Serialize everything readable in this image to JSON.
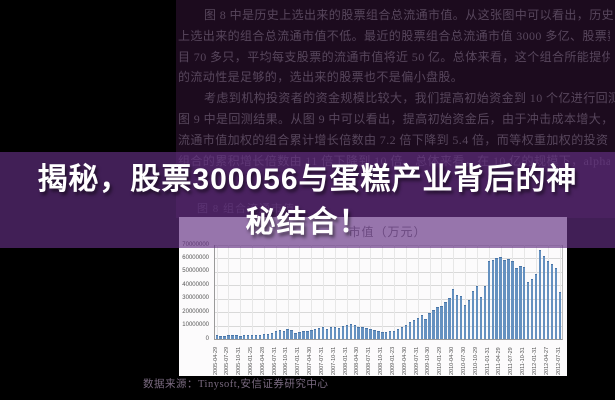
{
  "document": {
    "lines": [
      "图 8 中是历史上选出来的股票组合总流通市值。从这张图中可以看出，历史",
      "上选出来的组合总流通市值不低。最近的股票组合总流通市值 3000 多亿、股票数",
      "目 70 多只，平均每支股票的流通市值将近 50 亿。总体来看，这个组合所能提供",
      "的流动性是足够的，选出来的股票也不是偏小盘股。",
      "考虑到机构投资者的资金规模比较大，我们提高初始资金到 10 个亿进行回测，",
      "图 9 中是回测结果。从图 9 中可以看出，提高初始资金后，由于冲击成本增大，",
      "流通市值加权的组合累计增长倍数由 7.2 倍下降到 5.4 倍，而等权重加权的投资",
      "组合的累积增长倍数由 11 倍下降到 10 倍。总体来看，在 10 亿的规模下，alpha"
    ],
    "figure_caption": "图 8 组合流通市值"
  },
  "banner": {
    "title_line1": "揭秘，股票300056与蛋糕产业背后的神",
    "title_line2": "秘结合！",
    "full_title": "揭秘，股票300056与蛋糕产业背后的神秘结合！"
  },
  "footer": {
    "source_text": "数据来源：Tinysoft,安信证券研究中心"
  },
  "colors": {
    "page_bg": "#000000",
    "document_bg": "#1c0b1e",
    "document_text": "#57465c",
    "banner_overlay": "rgba(98,47,130,0.66)",
    "banner_text": "#ffffff",
    "chart_bg": "#fcfbfc",
    "bar": "#6591c0",
    "gridline": "#d9d9d9",
    "axis": "#9a9a9a",
    "tick_text": "#555555",
    "source_text": "#7a6a80"
  },
  "chart_data": {
    "type": "bar",
    "title": "市值（万元）",
    "xlabel": "",
    "ylabel": "",
    "ylim": [
      0,
      70000000
    ],
    "y_ticks": [
      0,
      10000000,
      20000000,
      30000000,
      40000000,
      50000000,
      60000000,
      70000000
    ],
    "grid": true,
    "legend_position": "none",
    "bar_color": "#6591c0",
    "x_label_every": 3,
    "x_tick_labels": [
      "2005-04-29",
      "2005-07-29",
      "2005-10-31",
      "2006-01-25",
      "2006-04-28",
      "2006-07-31",
      "2006-10-31",
      "2007-01-31",
      "2007-04-30",
      "2007-07-31",
      "2007-10-31",
      "2008-01-31",
      "2008-04-30",
      "2008-07-31",
      "2008-10-31",
      "2009-01-23",
      "2009-04-30",
      "2009-07-31",
      "2009-10-30",
      "2010-01-29",
      "2010-04-30",
      "2010-07-30",
      "2010-10-29",
      "2011-01-31",
      "2011-04-29",
      "2011-07-29",
      "2011-10-31",
      "2012-01-31",
      "2012-04-27",
      "2012-07-31"
    ],
    "values": [
      2000000,
      1800000,
      1700000,
      2000000,
      2200000,
      2100000,
      1800000,
      2000000,
      2200000,
      2400000,
      2600000,
      2200000,
      2800000,
      3200000,
      3800000,
      5500000,
      6000000,
      5500000,
      6500000,
      5800000,
      4000000,
      4500000,
      5000000,
      5500000,
      6000000,
      6500000,
      7500000,
      8500000,
      7000000,
      8000000,
      8500000,
      7500000,
      9000000,
      10000000,
      10800000,
      9500000,
      8500000,
      8000000,
      7500000,
      6500000,
      6000000,
      5000000,
      4500000,
      4200000,
      5000000,
      5500000,
      7000000,
      8500000,
      10000000,
      12000000,
      13500000,
      15000000,
      17000000,
      14000000,
      19000000,
      21000000,
      23000000,
      24000000,
      27000000,
      30000000,
      36500000,
      32000000,
      31500000,
      24500000,
      28000000,
      35000000,
      38500000,
      30500000,
      39000000,
      57000000,
      58000000,
      59500000,
      60000000,
      58000000,
      58500000,
      57000000,
      52000000,
      53500000,
      53000000,
      42000000,
      44000000,
      47500000,
      65500000,
      61000000,
      57500000,
      55000000,
      52000000,
      34500000
    ]
  }
}
